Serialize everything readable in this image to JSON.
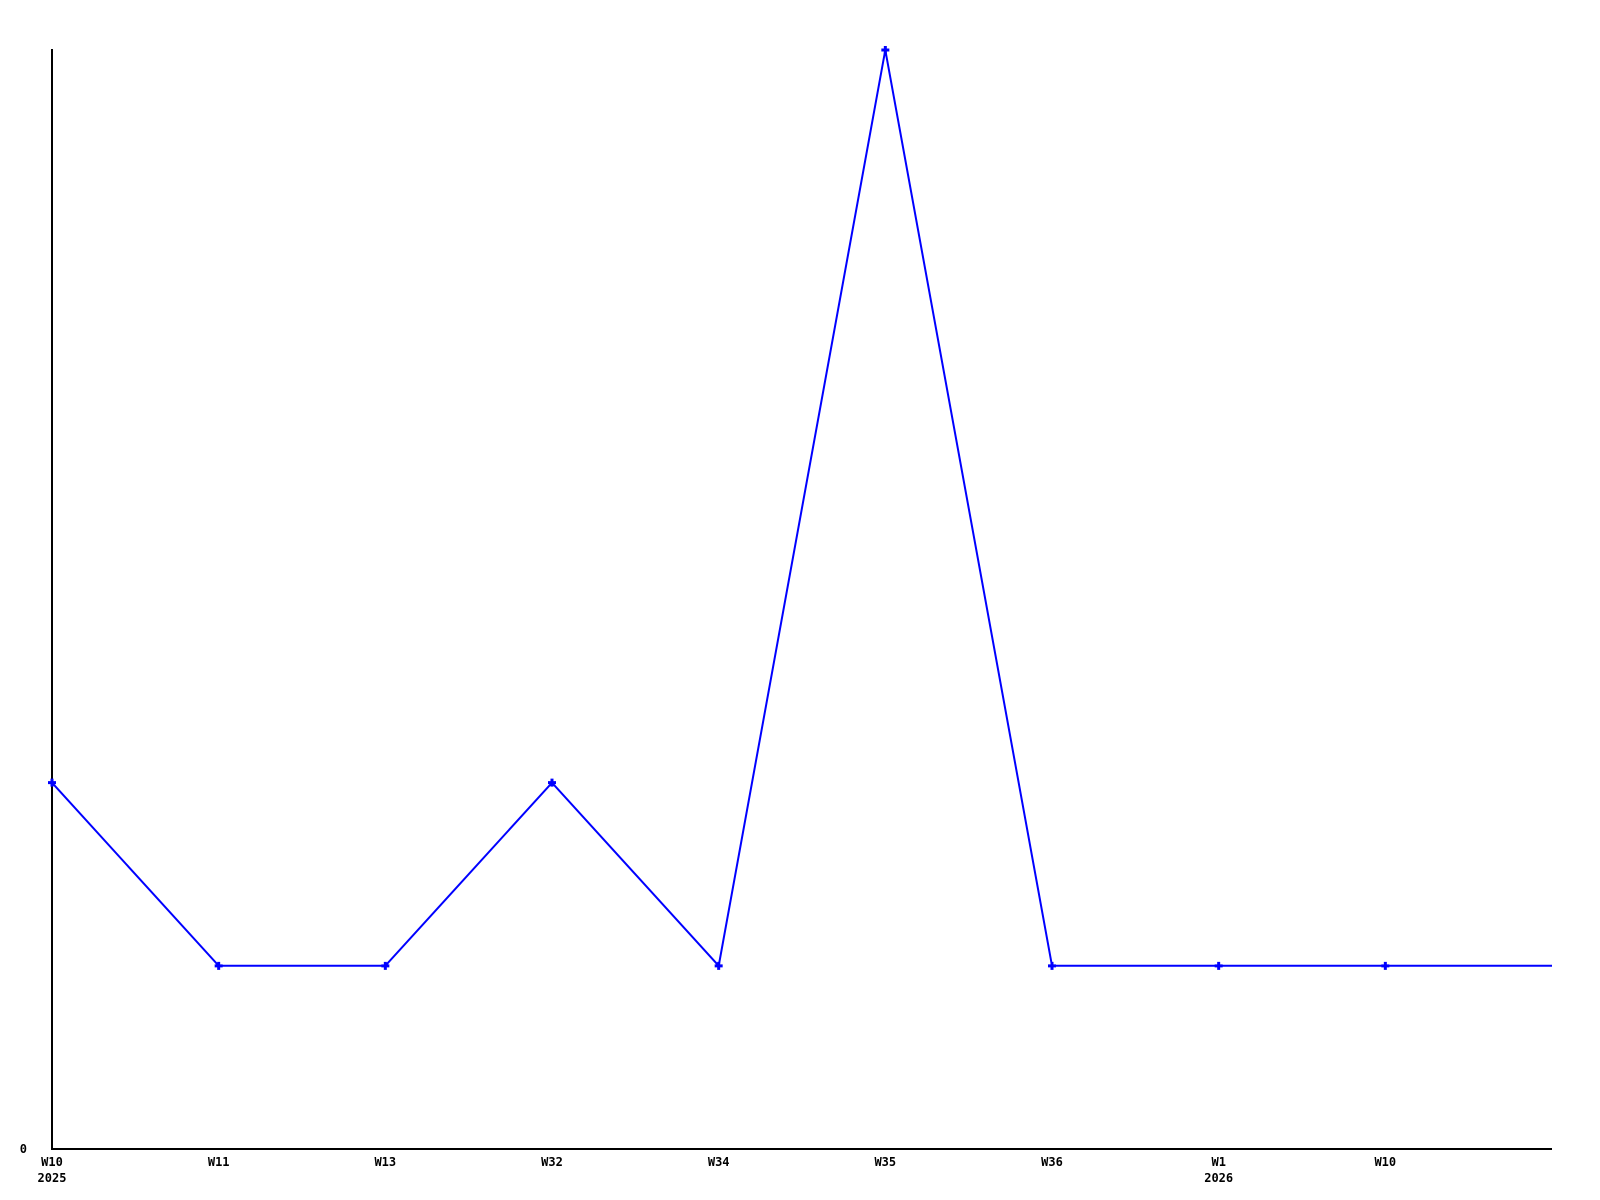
{
  "chart_data": {
    "type": "line",
    "series": [
      {
        "points": [
          {
            "x_label": "W10",
            "x_sublabel": "2025",
            "value": 2,
            "marker": true
          },
          {
            "x_label": "W11",
            "value": 1,
            "marker": true
          },
          {
            "x_label": "W13",
            "value": 1,
            "marker": true
          },
          {
            "x_label": "W32",
            "value": 2,
            "marker": true
          },
          {
            "x_label": "W34",
            "value": 1,
            "marker": true
          },
          {
            "x_label": "W35",
            "value": 6,
            "marker": true
          },
          {
            "x_label": "W36",
            "value": 1,
            "marker": true
          },
          {
            "x_label": "W1",
            "x_sublabel": "2026",
            "value": 1,
            "marker": true
          },
          {
            "x_label": "W10",
            "value": 1,
            "marker": true
          },
          {
            "x_label": "",
            "value": 1,
            "marker": false
          }
        ]
      }
    ],
    "title": "",
    "xlabel": "",
    "ylabel": "",
    "ylim": [
      0,
      6
    ],
    "y_tick_labels": [
      "0"
    ],
    "grid": false,
    "legend": null,
    "marker_style": "plus",
    "line_color": "#0000ff",
    "axis_color": "#000000",
    "background_color": "#ffffff"
  }
}
